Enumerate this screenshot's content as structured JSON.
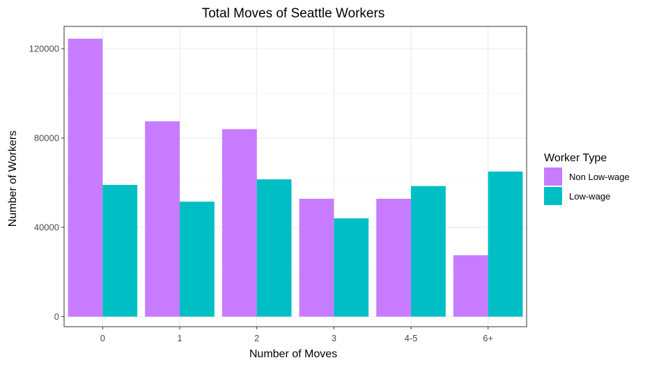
{
  "chart_data": {
    "type": "bar",
    "title": "Total Moves of Seattle Workers",
    "xlabel": "Number of Moves",
    "ylabel": "Number of Workers",
    "categories": [
      "0",
      "1",
      "2",
      "3",
      "4-5",
      "6+"
    ],
    "series": [
      {
        "name": "Non Low-wage",
        "color": "#C77CFF",
        "values": [
          124500,
          87500,
          84000,
          52800,
          52800,
          27500
        ]
      },
      {
        "name": "Low-wage",
        "color": "#00BFC4",
        "values": [
          59000,
          51500,
          61500,
          44000,
          58500,
          65000
        ]
      }
    ],
    "ylim": [
      -4500,
      130000
    ],
    "yticks": [
      0,
      40000,
      80000,
      120000
    ],
    "ytick_labels": [
      "0",
      "40000",
      "80000",
      "120000"
    ],
    "grid": true,
    "legend_position": "right",
    "legend_title": "Worker Type"
  }
}
